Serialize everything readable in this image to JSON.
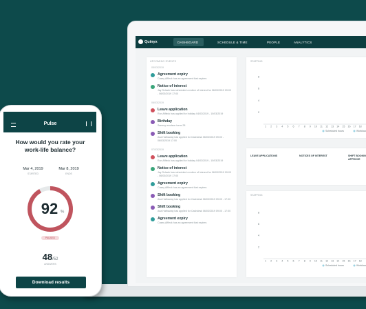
{
  "laptop": {
    "logo": "Quinyx",
    "nav": [
      "DASHBOARD",
      "SCHEDULE & TIME",
      "PEOPLE",
      "ANALYTICS"
    ],
    "events_panel": {
      "title": "UPCOMING EVENTS",
      "groups": [
        {
          "date": "05/03/2019",
          "events": [
            {
              "title": "Agreement expiry",
              "text": "Casey Affleck has an agreement that expires",
              "color": "#2f9c9a"
            },
            {
              "title": "Notice of interest",
              "text": "Jay Schwin has scheduled a notice of interest for 06/03/2019 09:00 - 06/03/2019 17:00",
              "color": "#3aa57a"
            }
          ]
        },
        {
          "date": "06/03/2019",
          "events": [
            {
              "title": "Leave application",
              "text": "Ron Affleck has applied for holiday 04/03/2019 - 10/03/2019",
              "color": "#d0505c"
            },
            {
              "title": "Birthday",
              "text": "Sammy woolson turns 28",
              "color": "#8a5bb5"
            },
            {
              "title": "Shift booking",
              "text": "Ana Hathaway has applied for Cashdesk 06/03/2019 09:00 - 06/03/2019 17:00",
              "color": "#8a5bb5"
            }
          ]
        },
        {
          "date": "07/03/2019",
          "events": [
            {
              "title": "Leave application",
              "text": "Ron Affleck has applied for holiday 04/03/2019 - 10/03/2019",
              "color": "#d0505c"
            },
            {
              "title": "Notice of interest",
              "text": "Jay Schwin has scheduled a notice of interest for 06/03/2019 09:00 - 06/03/2019 17:00",
              "color": "#3aa57a"
            },
            {
              "title": "Agreement expiry",
              "text": "Casey Affleck has an agreement that expires",
              "color": "#2f9c9a"
            },
            {
              "title": "Shift booking",
              "text": "Ana Hathaway has applied for Cashdesk 06/03/2019 09:00 - 17:00",
              "color": "#8a5bb5"
            },
            {
              "title": "Shift booking",
              "text": "Ana Hathaway has applied for Cashdesk 06/03/2019 09:00 - 17:00",
              "color": "#8a5bb5"
            },
            {
              "title": "Agreement expiry",
              "text": "Casey Affleck has an agreement that expires",
              "color": "#2f9c9a"
            }
          ]
        }
      ]
    },
    "staffing_charts": [
      {
        "title": "STAFFING",
        "ylim": [
          0,
          9
        ],
        "yticks": [
          2,
          4,
          6,
          8
        ],
        "categories": [
          "1",
          "2",
          "3",
          "4",
          "5",
          "6",
          "7",
          "8",
          "9",
          "10",
          "11",
          "12",
          "13",
          "14",
          "15",
          "16",
          "17",
          "18"
        ],
        "legend": [
          {
            "name": "Scheduled hours",
            "color": "#9bd3e3"
          },
          {
            "name": "Workload",
            "color": "#9bd3e3"
          }
        ]
      },
      {
        "title": "STAFFING",
        "ylim": [
          0,
          9
        ],
        "yticks": [
          2,
          4,
          6,
          8
        ],
        "categories": [
          "1",
          "2",
          "3",
          "4",
          "5",
          "6",
          "7",
          "8",
          "9",
          "10",
          "11",
          "12",
          "13",
          "14",
          "15",
          "16",
          "17",
          "18"
        ],
        "legend": [
          {
            "name": "Scheduled hours",
            "color": "#9bd3e3"
          },
          {
            "name": "Workload",
            "color": "#9bd3e3"
          }
        ]
      }
    ],
    "approvals_panel": {
      "columns": [
        "LEAVE APPLICATIONS",
        "NOTICES OF INTEREST",
        "SHIFT BOOKING APPROVE"
      ]
    }
  },
  "phone": {
    "title": "Pulse",
    "question": "How would you rate your work-life balance?",
    "start": {
      "date": "Mar 4, 2019",
      "label": "STARTED"
    },
    "end": {
      "date": "Mar 8, 2019",
      "label": "ENDS"
    },
    "score": 92,
    "score_max": 100,
    "score_unit": "%",
    "status": "PAUSED",
    "answers": 48,
    "answers_total": {
      "value": 52,
      "label": "/52"
    },
    "answers_label": "ANSWERS",
    "button": "Download results"
  }
}
